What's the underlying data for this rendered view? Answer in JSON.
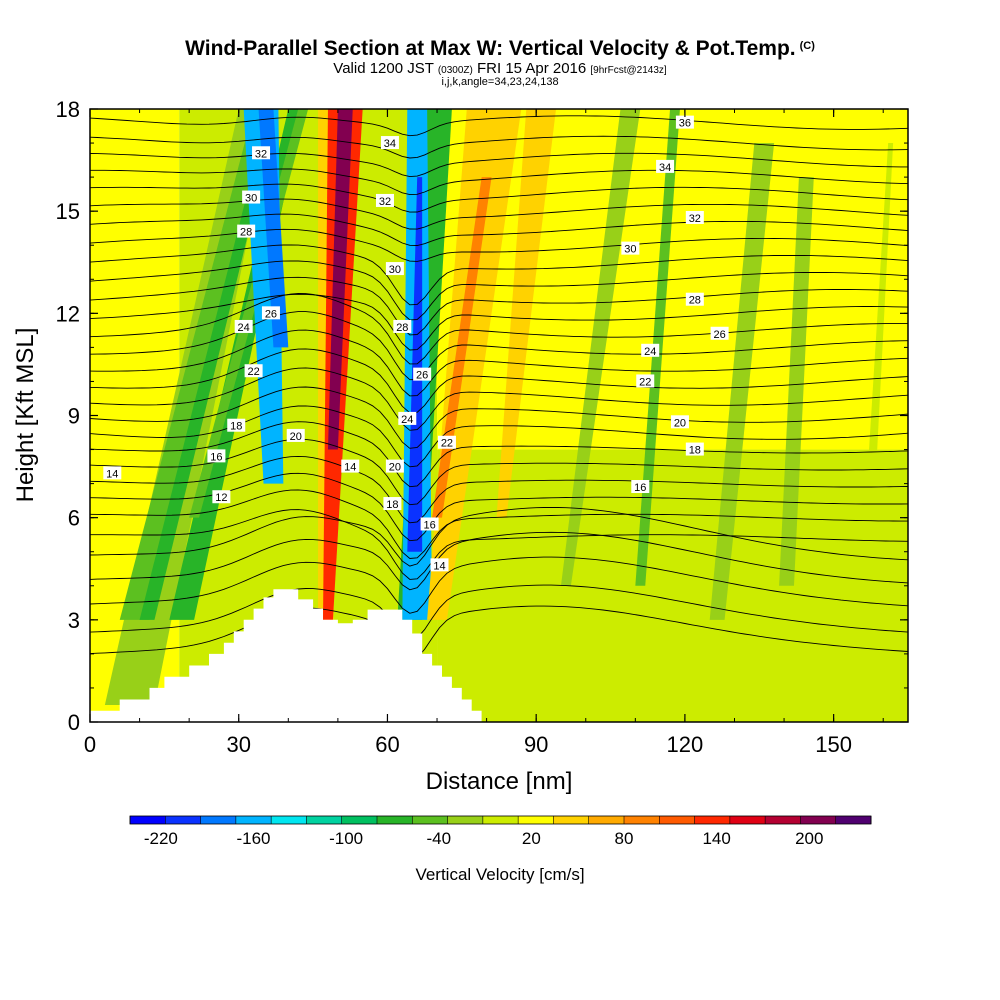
{
  "title": "Wind-Parallel Section at Max W: Vertical Velocity & Pot.Temp.",
  "title_tag": "(C)",
  "subtitle_main": "Valid 1200 JST",
  "subtitle_utc": "(0300Z)",
  "subtitle_date": "FRI 15 Apr 2016",
  "subtitle_fcst": "[9hrFcst@2143z]",
  "subtitle2": "i,j,k,angle=34,23,24,138",
  "chart_data": {
    "type": "heatmap",
    "xlabel": "Distance [nm]",
    "ylabel": "Height [Kft MSL]",
    "xlim": [
      0,
      165
    ],
    "ylim": [
      0,
      18
    ],
    "xticks": [
      0,
      30,
      60,
      90,
      120,
      150
    ],
    "yticks": [
      0,
      3,
      6,
      9,
      12,
      15,
      18
    ],
    "colorbar": {
      "title": "Vertical Velocity [cm/s]",
      "tick_values": [
        -220,
        -160,
        -100,
        -40,
        20,
        80,
        140,
        200
      ],
      "tick_labels": [
        "-220",
        "-160",
        "-100",
        "-40",
        "20",
        "80",
        "140",
        "200"
      ],
      "colors": [
        "#0000ff",
        "#0a32ff",
        "#0078ff",
        "#00b4ff",
        "#00e6f0",
        "#00d2a0",
        "#00c060",
        "#28b428",
        "#5cc020",
        "#98d018",
        "#ccec00",
        "#ffff00",
        "#ffd200",
        "#ffaa00",
        "#ff8200",
        "#ff5a00",
        "#ff2800",
        "#e00014",
        "#b40032",
        "#820050",
        "#500070"
      ]
    },
    "background_cells": [
      {
        "x": [
          0,
          18
        ],
        "y": [
          0,
          18
        ],
        "value": 20
      },
      {
        "x": [
          18,
          70
        ],
        "y": [
          0,
          18
        ],
        "value": 10
      },
      {
        "x": [
          70,
          165
        ],
        "y": [
          0,
          8
        ],
        "value": 0
      },
      {
        "x": [
          70,
          165
        ],
        "y": [
          8,
          18
        ],
        "value": 25
      },
      {
        "x": [
          85,
          165
        ],
        "y": [
          0,
          6
        ],
        "value": -5
      }
    ],
    "features": [
      {
        "x": [
          [
            3,
            13
          ],
          [
            30,
            37
          ]
        ],
        "y": [
          0.5,
          18
        ],
        "value": -25
      },
      {
        "x": [
          [
            6,
            12
          ],
          [
            33,
            36
          ]
        ],
        "y": [
          3,
          18
        ],
        "value": -50
      },
      {
        "x": [
          [
            10,
            13
          ],
          [
            36,
            38
          ]
        ],
        "y": [
          3,
          18
        ],
        "value": -60
      },
      {
        "x": [
          [
            16,
            21
          ],
          [
            40,
            43
          ]
        ],
        "y": [
          3,
          18
        ],
        "value": -80
      },
      {
        "x": [
          [
            20,
            22
          ],
          [
            42,
            44
          ]
        ],
        "y": [
          6,
          18
        ],
        "value": -55
      },
      {
        "x": [
          [
            35,
            39
          ],
          [
            31,
            38
          ]
        ],
        "y": [
          7,
          18
        ],
        "value": -150
      },
      {
        "x": [
          [
            37,
            40
          ],
          [
            34,
            37
          ]
        ],
        "y": [
          11,
          18
        ],
        "value": -190
      },
      {
        "x": [
          [
            46,
            49
          ],
          [
            46,
            50
          ]
        ],
        "y": [
          0.5,
          18
        ],
        "value": 50
      },
      {
        "x": [
          [
            47,
            49
          ],
          [
            48,
            55
          ]
        ],
        "y": [
          3,
          18
        ],
        "value": 130
      },
      {
        "x": [
          [
            48,
            50
          ],
          [
            50,
            53
          ]
        ],
        "y": [
          8,
          18
        ],
        "value": 195
      },
      {
        "x": [
          [
            62,
            67
          ],
          [
            68,
            73
          ]
        ],
        "y": [
          3,
          18
        ],
        "value": -60
      },
      {
        "x": [
          [
            63,
            69
          ],
          [
            64,
            68
          ]
        ],
        "y": [
          3,
          18
        ],
        "value": -170
      },
      {
        "x": [
          [
            64,
            67
          ],
          [
            66,
            67
          ]
        ],
        "y": [
          5,
          16
        ],
        "value": -215
      },
      {
        "x": [
          [
            68,
            72
          ],
          [
            76,
            87
          ]
        ],
        "y": [
          3,
          18
        ],
        "value": 55
      },
      {
        "x": [
          [
            69,
            71
          ],
          [
            79,
            81
          ]
        ],
        "y": [
          6,
          16
        ],
        "value": 85
      },
      {
        "x": [
          [
            82,
            84
          ],
          [
            88,
            94
          ]
        ],
        "y": [
          6,
          18
        ],
        "value": 45
      },
      {
        "x": [
          [
            95,
            97
          ],
          [
            107,
            111
          ]
        ],
        "y": [
          4,
          18
        ],
        "value": -20
      },
      {
        "x": [
          [
            110,
            112
          ],
          [
            117,
            119
          ]
        ],
        "y": [
          4,
          18
        ],
        "value": -40
      },
      {
        "x": [
          [
            125,
            128
          ],
          [
            134,
            138
          ]
        ],
        "y": [
          3,
          17
        ],
        "value": -25
      },
      {
        "x": [
          [
            139,
            142
          ],
          [
            143,
            146
          ]
        ],
        "y": [
          4,
          16
        ],
        "value": -30
      },
      {
        "x": [
          [
            155,
            157
          ],
          [
            161,
            162
          ]
        ],
        "y": [
          3,
          17
        ],
        "value": -10
      }
    ],
    "terrain": [
      [
        0,
        0.33
      ],
      [
        6,
        0.33
      ],
      [
        6,
        0.66
      ],
      [
        12,
        0.66
      ],
      [
        12,
        1.0
      ],
      [
        15,
        1.0
      ],
      [
        15,
        1.33
      ],
      [
        20,
        1.33
      ],
      [
        20,
        1.66
      ],
      [
        24,
        1.66
      ],
      [
        24,
        2.0
      ],
      [
        27,
        2.0
      ],
      [
        27,
        2.33
      ],
      [
        29,
        2.33
      ],
      [
        29,
        2.66
      ],
      [
        31,
        2.66
      ],
      [
        31,
        3.0
      ],
      [
        33,
        3.0
      ],
      [
        33,
        3.33
      ],
      [
        35,
        3.33
      ],
      [
        35,
        3.66
      ],
      [
        37,
        3.66
      ],
      [
        37,
        3.9
      ],
      [
        42,
        3.9
      ],
      [
        42,
        3.6
      ],
      [
        45,
        3.6
      ],
      [
        45,
        3.33
      ],
      [
        47,
        3.33
      ],
      [
        47,
        3.0
      ],
      [
        50,
        3.0
      ],
      [
        50,
        2.9
      ],
      [
        53,
        2.9
      ],
      [
        53,
        3.0
      ],
      [
        56,
        3.0
      ],
      [
        56,
        3.3
      ],
      [
        63,
        3.3
      ],
      [
        63,
        3.0
      ],
      [
        65,
        3.0
      ],
      [
        65,
        2.6
      ],
      [
        67,
        2.6
      ],
      [
        67,
        2.0
      ],
      [
        69,
        2.0
      ],
      [
        69,
        1.66
      ],
      [
        71,
        1.66
      ],
      [
        71,
        1.33
      ],
      [
        73,
        1.33
      ],
      [
        73,
        1.0
      ],
      [
        75,
        1.0
      ],
      [
        75,
        0.66
      ],
      [
        77,
        0.66
      ],
      [
        77,
        0.33
      ],
      [
        79,
        0.33
      ],
      [
        79,
        0
      ]
    ],
    "theta_contours": {
      "levels": [
        8,
        9,
        10,
        11,
        12,
        13,
        14,
        15,
        16,
        17,
        18,
        19,
        20,
        21,
        22,
        23,
        24,
        25,
        26,
        27,
        28,
        29,
        30,
        31,
        32,
        33,
        34,
        35,
        36,
        37
      ],
      "base_height": [
        2.0,
        2.6,
        3.4,
        4.1,
        4.8,
        5.4,
        6.0,
        6.5,
        7.0,
        7.5,
        8.0,
        8.5,
        9.0,
        9.5,
        10.0,
        10.5,
        11.0,
        11.5,
        12.0,
        12.5,
        13.0,
        13.5,
        14.0,
        14.5,
        15.0,
        15.5,
        16.0,
        16.5,
        17.0,
        17.6
      ]
    },
    "contour_labels": [
      {
        "text": "14",
        "x": 4.5,
        "y": 7.3
      },
      {
        "text": "12",
        "x": 26.5,
        "y": 6.6
      },
      {
        "text": "16",
        "x": 25.5,
        "y": 7.8
      },
      {
        "text": "18",
        "x": 29.5,
        "y": 8.7
      },
      {
        "text": "22",
        "x": 33,
        "y": 10.3
      },
      {
        "text": "24",
        "x": 31,
        "y": 11.6
      },
      {
        "text": "26",
        "x": 36.5,
        "y": 12.0
      },
      {
        "text": "28",
        "x": 31.5,
        "y": 14.4
      },
      {
        "text": "30",
        "x": 32.5,
        "y": 15.4
      },
      {
        "text": "32",
        "x": 34.5,
        "y": 16.7
      },
      {
        "text": "20",
        "x": 41.5,
        "y": 8.4
      },
      {
        "text": "14",
        "x": 52.5,
        "y": 7.5
      },
      {
        "text": "34",
        "x": 60.5,
        "y": 17.0
      },
      {
        "text": "32",
        "x": 59.5,
        "y": 15.3
      },
      {
        "text": "30",
        "x": 61.5,
        "y": 13.3
      },
      {
        "text": "28",
        "x": 63,
        "y": 11.6
      },
      {
        "text": "26",
        "x": 67,
        "y": 10.2
      },
      {
        "text": "24",
        "x": 64,
        "y": 8.9
      },
      {
        "text": "22",
        "x": 72,
        "y": 8.2
      },
      {
        "text": "20",
        "x": 61.5,
        "y": 7.5
      },
      {
        "text": "18",
        "x": 61,
        "y": 6.4
      },
      {
        "text": "16",
        "x": 68.5,
        "y": 5.8
      },
      {
        "text": "14",
        "x": 70.5,
        "y": 4.6
      },
      {
        "text": "36",
        "x": 120,
        "y": 17.6
      },
      {
        "text": "34",
        "x": 116,
        "y": 16.3
      },
      {
        "text": "32",
        "x": 122,
        "y": 14.8
      },
      {
        "text": "30",
        "x": 109,
        "y": 13.9
      },
      {
        "text": "28",
        "x": 122,
        "y": 12.4
      },
      {
        "text": "26",
        "x": 127,
        "y": 11.4
      },
      {
        "text": "24",
        "x": 113,
        "y": 10.9
      },
      {
        "text": "22",
        "x": 112,
        "y": 10.0
      },
      {
        "text": "20",
        "x": 119,
        "y": 8.8
      },
      {
        "text": "18",
        "x": 122,
        "y": 8.0
      },
      {
        "text": "16",
        "x": 111,
        "y": 6.9
      }
    ]
  }
}
